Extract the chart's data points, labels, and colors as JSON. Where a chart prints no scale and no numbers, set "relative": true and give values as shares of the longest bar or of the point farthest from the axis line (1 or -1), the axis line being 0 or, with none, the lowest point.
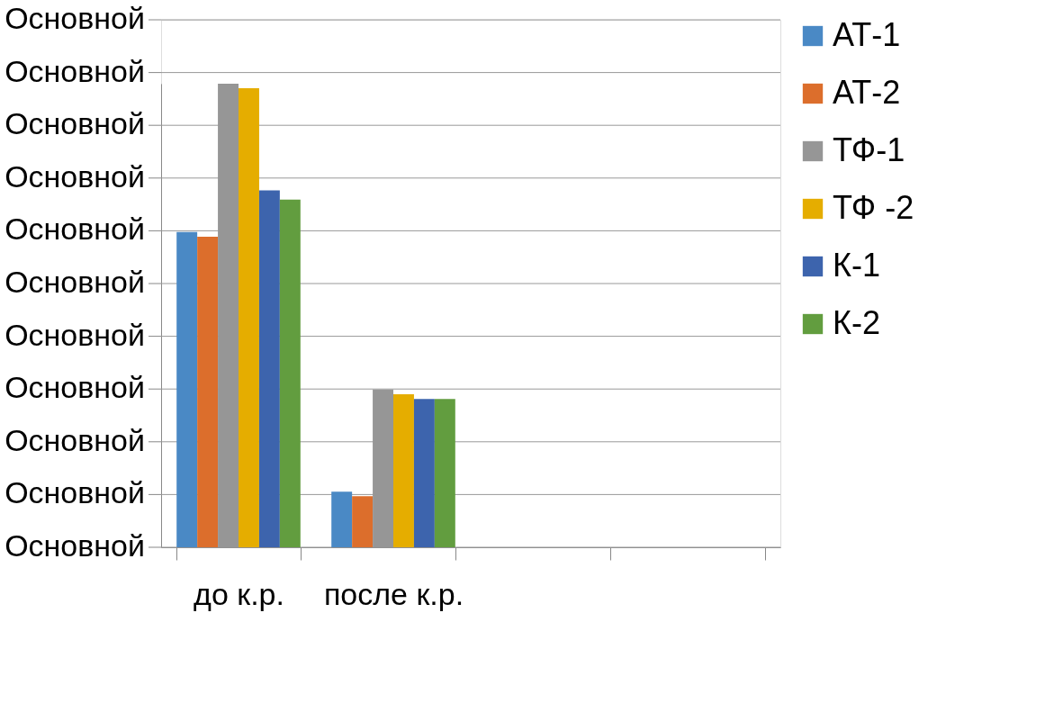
{
  "chart_data": {
    "type": "bar",
    "relative": true,
    "categories": [
      "до к.р.",
      "после к.р.",
      null,
      null
    ],
    "series": [
      {
        "name": "АТ-1",
        "color": "#4a89c5",
        "values": [
          0.68,
          0.12,
          null,
          null
        ]
      },
      {
        "name": "АТ-2",
        "color": "#dc6e2c",
        "values": [
          0.67,
          0.11,
          null,
          null
        ]
      },
      {
        "name": "ТФ-1",
        "color": "#969696",
        "values": [
          1,
          0.34,
          null,
          null
        ]
      },
      {
        "name": "ТФ -2",
        "color": "#e5ad00",
        "values": [
          0.99,
          0.33,
          null,
          null
        ]
      },
      {
        "name": "К-1",
        "color": "#3d64ad",
        "values": [
          0.77,
          0.32,
          null,
          null
        ]
      },
      {
        "name": "К-2",
        "color": "#629d3f",
        "values": [
          0.75,
          0.32,
          null,
          null
        ]
      }
    ],
    "annotations": [
      "Основной",
      "Основной",
      "Основной",
      "Основной",
      "Основной",
      "Основной",
      "Основной",
      "Основной",
      "Основной",
      "Основной",
      "Основной"
    ],
    "grid": "y",
    "legend": "right"
  }
}
